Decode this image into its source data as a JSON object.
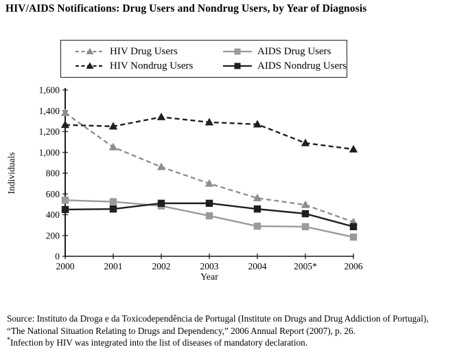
{
  "title": "HIV/AIDS Notifications: Drug Users and Nondrug Users, by Year of Diagnosis",
  "chart_data": {
    "type": "line",
    "x": [
      2000,
      2001,
      2002,
      2003,
      2004,
      2005,
      2006
    ],
    "x_tick_labels": [
      "2000",
      "2001",
      "2002",
      "2003",
      "2004",
      "2005*",
      "2006"
    ],
    "xlabel": "Year",
    "ylabel": "Individuals",
    "ylim": [
      0,
      1600
    ],
    "y_tick_step": 200,
    "y_tick_labels": [
      "0",
      "200",
      "400",
      "600",
      "800",
      "1,000",
      "1,200",
      "1,400",
      "1,600"
    ],
    "grid": false,
    "legend_position": "top",
    "axis_color": "#1c1c1c",
    "series": [
      {
        "name": "HIV Drug Users",
        "values": [
          1380,
          1050,
          860,
          700,
          560,
          495,
          330
        ],
        "color": "#8e8e8e",
        "dash": true,
        "marker": "triangle"
      },
      {
        "name": "HIV Nondrug Users",
        "values": [
          1265,
          1250,
          1340,
          1290,
          1270,
          1090,
          1030
        ],
        "color": "#1f1f1f",
        "dash": true,
        "marker": "triangle"
      },
      {
        "name": "AIDS Drug Users",
        "values": [
          540,
          525,
          485,
          390,
          290,
          285,
          185
        ],
        "color": "#9a9a9a",
        "dash": false,
        "marker": "square"
      },
      {
        "name": "AIDS Nondrug Users",
        "values": [
          450,
          455,
          510,
          510,
          455,
          410,
          285
        ],
        "color": "#1f1f1f",
        "dash": false,
        "marker": "square"
      }
    ]
  },
  "source": {
    "line1": "Source: Instituto da Droga e da Toxicodependência de Portugal (Institute on Drugs and Drug Addiction of Portugal),",
    "line2": "“The National Situation Relating to Drugs and Dependency,” 2006 Annual Report (2007), p. 26.",
    "footnote_marker": "*",
    "footnote": "Infection by HIV was integrated into the list of diseases of mandatory declaration."
  }
}
